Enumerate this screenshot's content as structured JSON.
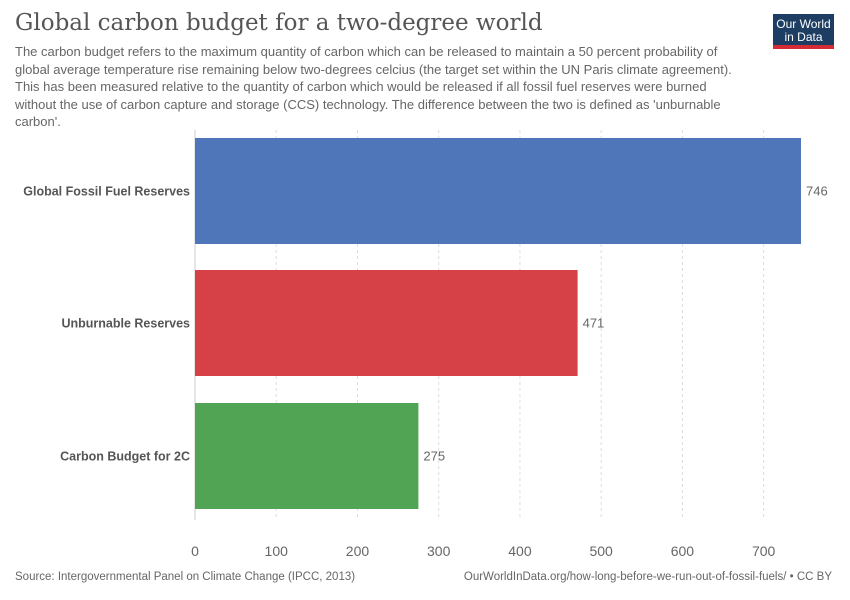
{
  "header": {
    "title": "Global carbon budget for a two-degree world",
    "subtitle": "The carbon budget refers to the maximum quantity of carbon which can be released to maintain a 50 percent probability of global average temperature rise remaining below two-degrees celcius (the target set within the UN Paris climate agreement). This has been measured relative to the quantity of carbon which would be released if all fossil fuel reserves were burned without the use of carbon capture and storage (CCS) technology. The difference between the two is defined as 'unburnable carbon'.",
    "logo_line1": "Our World",
    "logo_line2": "in Data"
  },
  "chart_data": {
    "type": "bar",
    "orientation": "horizontal",
    "categories": [
      "Global Fossil Fuel Reserves",
      "Unburnable Reserves",
      "Carbon Budget for 2C"
    ],
    "values": [
      746,
      471,
      275
    ],
    "colors": [
      "#4e76b9",
      "#d54147",
      "#52a455"
    ],
    "xlim": [
      0,
      750
    ],
    "xticks": [
      0,
      100,
      200,
      300,
      400,
      500,
      600,
      700
    ],
    "grid": "vertical dashed",
    "data_labels": [
      "746",
      "471",
      "275"
    ]
  },
  "footer": {
    "source": "Source: Intergovernmental Panel on Climate Change (IPCC, 2013)",
    "url": "OurWorldInData.org/how-long-before-we-run-out-of-fossil-fuels/ • CC BY"
  }
}
